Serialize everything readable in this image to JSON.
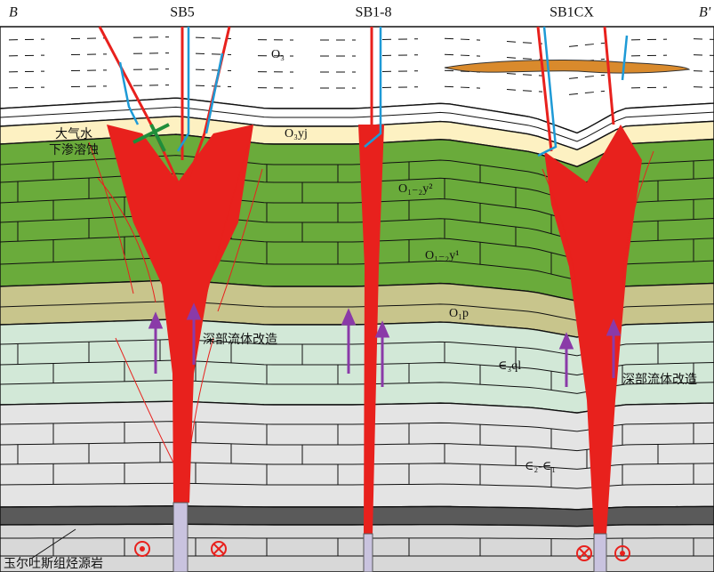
{
  "header": {
    "left_end": "B",
    "right_end": "B'",
    "wells": [
      "SB5",
      "SB1-8",
      "SB1CX"
    ]
  },
  "strata": [
    "O₃",
    "O₃yj",
    "O₁₋₂y²",
    "O₁₋₂y¹",
    "O₁p",
    "∈₃ql",
    "∈₂-∈₁"
  ],
  "annotations": {
    "meteoric_1": "大气水",
    "meteoric_2": "下渗溶蚀",
    "deep_fluid_1": "深部流体改造",
    "deep_fluid_2": "深部流体改造",
    "source_rock": "玉尔吐斯组烃源岩"
  }
}
